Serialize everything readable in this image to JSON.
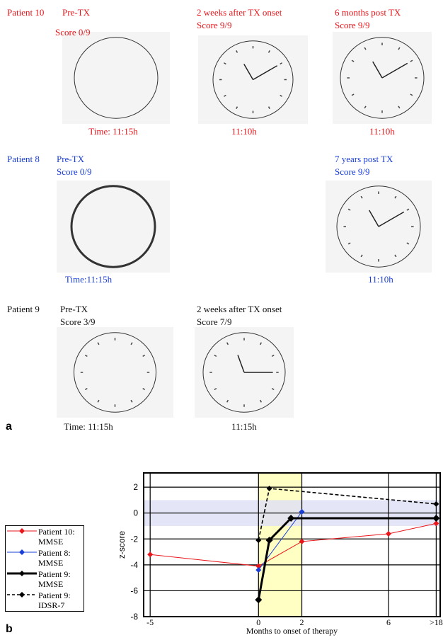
{
  "panel_a": {
    "label": "a",
    "rows": [
      {
        "patient": "Patient 10",
        "color": "#e8161b",
        "panels": [
          {
            "heading": "Pre-TX",
            "score": "Score 0/9",
            "time": "Time: 11:15h"
          },
          {
            "heading": "2 weeks after TX onset",
            "score": "Score 9/9",
            "time": "11:10h"
          },
          {
            "heading": "6 months post TX",
            "score": "Score 9/9",
            "time": "11:10h"
          }
        ]
      },
      {
        "patient": "Patient 8",
        "color": "#1a3fd6",
        "panels": [
          {
            "heading": "Pre-TX",
            "score": "Score 0/9",
            "time": "Time:11:15h"
          },
          {
            "heading": "7 years post TX",
            "score": "Score 9/9",
            "time": "11:10h"
          }
        ]
      },
      {
        "patient": "Patient 9",
        "color": "#111111",
        "panels": [
          {
            "heading": "Pre-TX",
            "score": "Score 3/9",
            "time": "Time: 11:15h"
          },
          {
            "heading": "2 weeks after TX onset",
            "score": "Score 7/9",
            "time": "11:15h"
          }
        ]
      }
    ]
  },
  "chart_data": {
    "type": "line",
    "panel_label": "b",
    "x_label": "Months  to onset of therapy",
    "y_label": "z-score",
    "xlim": [
      -5.3,
      19
    ],
    "ylim": [
      -8,
      3.1
    ],
    "xticks": [
      -5,
      0,
      2,
      6,
      {
        "value": 18,
        "label": ">18"
      }
    ],
    "yticks": [
      -8,
      -6,
      -4,
      -2,
      0,
      2
    ],
    "grid": true,
    "bands": [
      {
        "axis": "x",
        "range": [
          0,
          2
        ],
        "color": "#ffffc4"
      },
      {
        "axis": "y",
        "range": [
          -1,
          1
        ],
        "color": "#dfe1f4"
      }
    ],
    "series": [
      {
        "name": "Patient 10: MMSE",
        "color": "#e8161b",
        "line_width": 1,
        "dashed": false,
        "x": [
          -5,
          0,
          2,
          6,
          18
        ],
        "values": [
          -3.2,
          -4.1,
          -2.2,
          -1.6,
          -0.8
        ]
      },
      {
        "name": "Patient 8: MMSE",
        "color": "#1a3fd6",
        "line_width": 1,
        "dashed": false,
        "x": [
          0,
          2
        ],
        "values": [
          -4.4,
          0.1
        ]
      },
      {
        "name": "Patient 9: MMSE",
        "color": "#000000",
        "line_width": 3,
        "dashed": false,
        "x": [
          0,
          0.5,
          1.5,
          18
        ],
        "values": [
          -6.7,
          -2.1,
          -0.4,
          -0.4
        ]
      },
      {
        "name": "Patient 9: IDSR-7",
        "color": "#000000",
        "line_width": 1.6,
        "dashed": true,
        "x": [
          0,
          0.5,
          18
        ],
        "values": [
          -2.1,
          1.9,
          0.7
        ]
      }
    ]
  }
}
